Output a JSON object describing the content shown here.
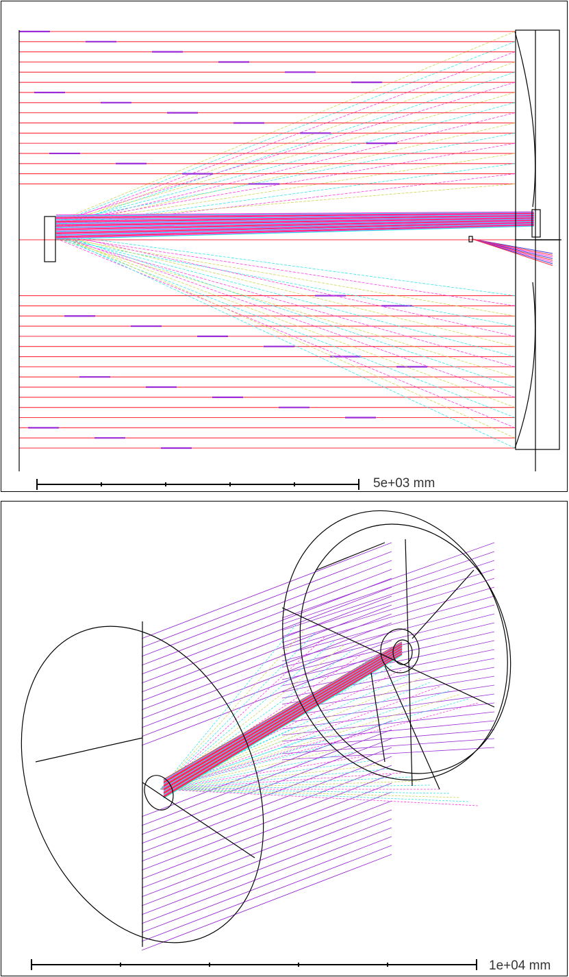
{
  "top_view": {
    "scale_label": "5e+03 mm",
    "scale_ticks": 6
  },
  "iso_view": {
    "scale_label": "1e+04 mm",
    "scale_ticks": 6
  },
  "colors": {
    "ray_red": "#ff2a3c",
    "ray_purple": "#9a2bd6",
    "ray_magenta": "#ff33e0",
    "ray_cyan": "#2ee6e6",
    "ray_yellow": "#cfd64a",
    "ray_blue": "#3a3ad8",
    "outline": "#000000"
  }
}
